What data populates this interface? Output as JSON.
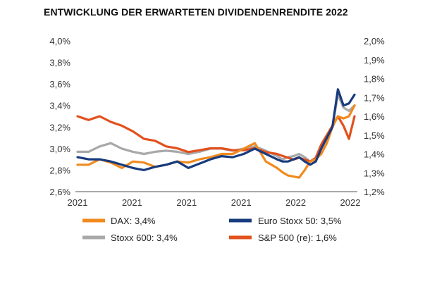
{
  "title": "ENTWICKLUNG DER ERWARTETEN DIVIDENDENRENDITE 2022",
  "chart_data": {
    "type": "line",
    "title": "ENTWICKLUNG DER ERWARTETEN DIVIDENDENRENDITE 2022",
    "x": [
      0,
      0.04,
      0.08,
      0.12,
      0.16,
      0.2,
      0.24,
      0.28,
      0.32,
      0.36,
      0.4,
      0.44,
      0.48,
      0.52,
      0.56,
      0.6,
      0.64,
      0.68,
      0.72,
      0.74,
      0.76,
      0.78,
      0.8,
      0.82,
      0.84,
      0.86,
      0.88,
      0.9,
      0.92,
      0.94,
      0.96,
      0.98,
      1.0
    ],
    "x_tick_labels": [
      "2021",
      "2021",
      "2021",
      "2021",
      "2022",
      "2022"
    ],
    "y_left": {
      "ticks": [
        "2,6%",
        "2,8%",
        "3,0%",
        "3,2%",
        "3,4%",
        "3,6%",
        "3,8%",
        "4,0%"
      ],
      "range": [
        2.6,
        4.0
      ]
    },
    "y_right": {
      "ticks": [
        "1,2%",
        "1,3%",
        "1,4%",
        "1,5%",
        "1,6%",
        "1,7%",
        "1,8%",
        "1,9%",
        "2,0%"
      ],
      "range": [
        1.2,
        2.0
      ]
    },
    "legend_placement": "bottom",
    "grid": false,
    "series": [
      {
        "name": "DAX: 3,4%",
        "color": "#F08A1E",
        "axis": "left",
        "values": [
          2.85,
          2.85,
          2.9,
          2.87,
          2.82,
          2.88,
          2.87,
          2.83,
          2.85,
          2.88,
          2.87,
          2.9,
          2.92,
          2.95,
          2.95,
          3.0,
          3.05,
          2.88,
          2.82,
          2.78,
          2.75,
          2.74,
          2.73,
          2.8,
          2.88,
          2.9,
          2.95,
          3.05,
          3.2,
          3.3,
          3.28,
          3.3,
          3.4
        ]
      },
      {
        "name": "Euro Stoxx 50: 3,5%",
        "color": "#183B7E",
        "axis": "left",
        "values": [
          2.92,
          2.9,
          2.9,
          2.88,
          2.85,
          2.82,
          2.8,
          2.83,
          2.85,
          2.88,
          2.82,
          2.86,
          2.9,
          2.93,
          2.92,
          2.95,
          3.0,
          2.95,
          2.9,
          2.88,
          2.88,
          2.9,
          2.92,
          2.88,
          2.85,
          2.88,
          3.0,
          3.1,
          3.2,
          3.55,
          3.4,
          3.42,
          3.5
        ]
      },
      {
        "name": "Stoxx 600: 3,4%",
        "color": "#A8A8A8",
        "axis": "left",
        "values": [
          2.97,
          2.97,
          3.02,
          3.05,
          3.0,
          2.97,
          2.95,
          2.97,
          2.98,
          2.97,
          2.95,
          2.97,
          3.0,
          3.0,
          2.98,
          3.0,
          3.02,
          2.98,
          2.93,
          2.9,
          2.92,
          2.93,
          2.95,
          2.92,
          2.88,
          2.9,
          3.0,
          3.1,
          3.2,
          3.5,
          3.38,
          3.35,
          3.4
        ]
      },
      {
        "name": "S&P 500 (re): 1,6%",
        "color": "#E2501C",
        "axis": "right",
        "values": [
          1.6,
          1.58,
          1.6,
          1.57,
          1.55,
          1.52,
          1.48,
          1.47,
          1.44,
          1.43,
          1.41,
          1.42,
          1.43,
          1.43,
          1.42,
          1.42,
          1.43,
          1.41,
          1.4,
          1.39,
          1.38,
          1.37,
          1.38,
          1.37,
          1.36,
          1.38,
          1.45,
          1.5,
          1.55,
          1.6,
          1.55,
          1.48,
          1.6
        ]
      }
    ]
  }
}
